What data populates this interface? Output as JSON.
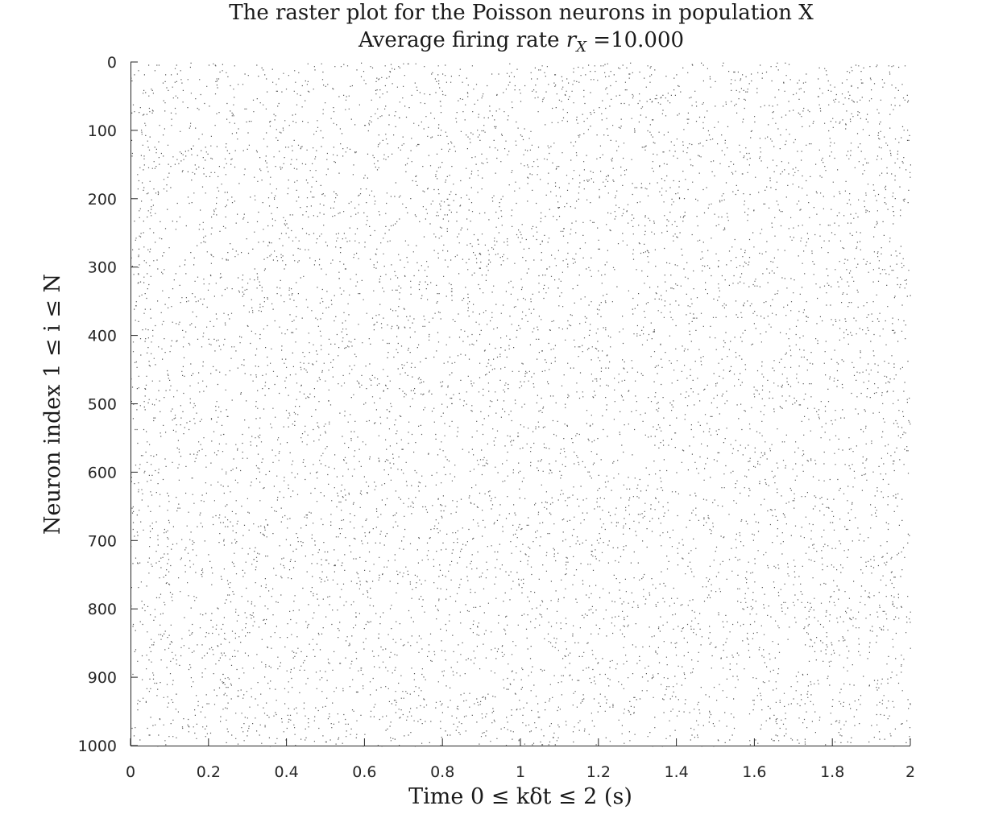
{
  "chart_data": {
    "type": "scatter",
    "subtype": "raster",
    "title": "The raster plot for the Poisson neurons in population X",
    "subtitle_prefix": "Average firing rate ",
    "subtitle_symbol": "r",
    "subtitle_symbol_subscript": "X",
    "subtitle_value": " =10.000",
    "xlabel": "Time 0 ≤ kδt ≤ 2 (s)",
    "ylabel": "Neuron index 1 ≤ i ≤ N",
    "xlim": [
      0,
      2
    ],
    "ylim": [
      0,
      1000
    ],
    "y_reversed": true,
    "x_ticks": [
      "0",
      "0.2",
      "0.4",
      "0.6",
      "0.8",
      "1",
      "1.2",
      "1.4",
      "1.6",
      "1.8",
      "2"
    ],
    "y_ticks": [
      "0",
      "100",
      "200",
      "300",
      "400",
      "500",
      "600",
      "700",
      "800",
      "900",
      "1000"
    ],
    "x_tick_values": [
      0,
      0.2,
      0.4,
      0.6,
      0.8,
      1.0,
      1.2,
      1.4,
      1.6,
      1.8,
      2.0
    ],
    "y_tick_values": [
      0,
      100,
      200,
      300,
      400,
      500,
      600,
      700,
      800,
      900,
      1000
    ],
    "neurons": 1000,
    "duration_s": 2,
    "firing_rate_hz": 10,
    "marker_color": "#555555",
    "grid": false,
    "legend": "none"
  }
}
